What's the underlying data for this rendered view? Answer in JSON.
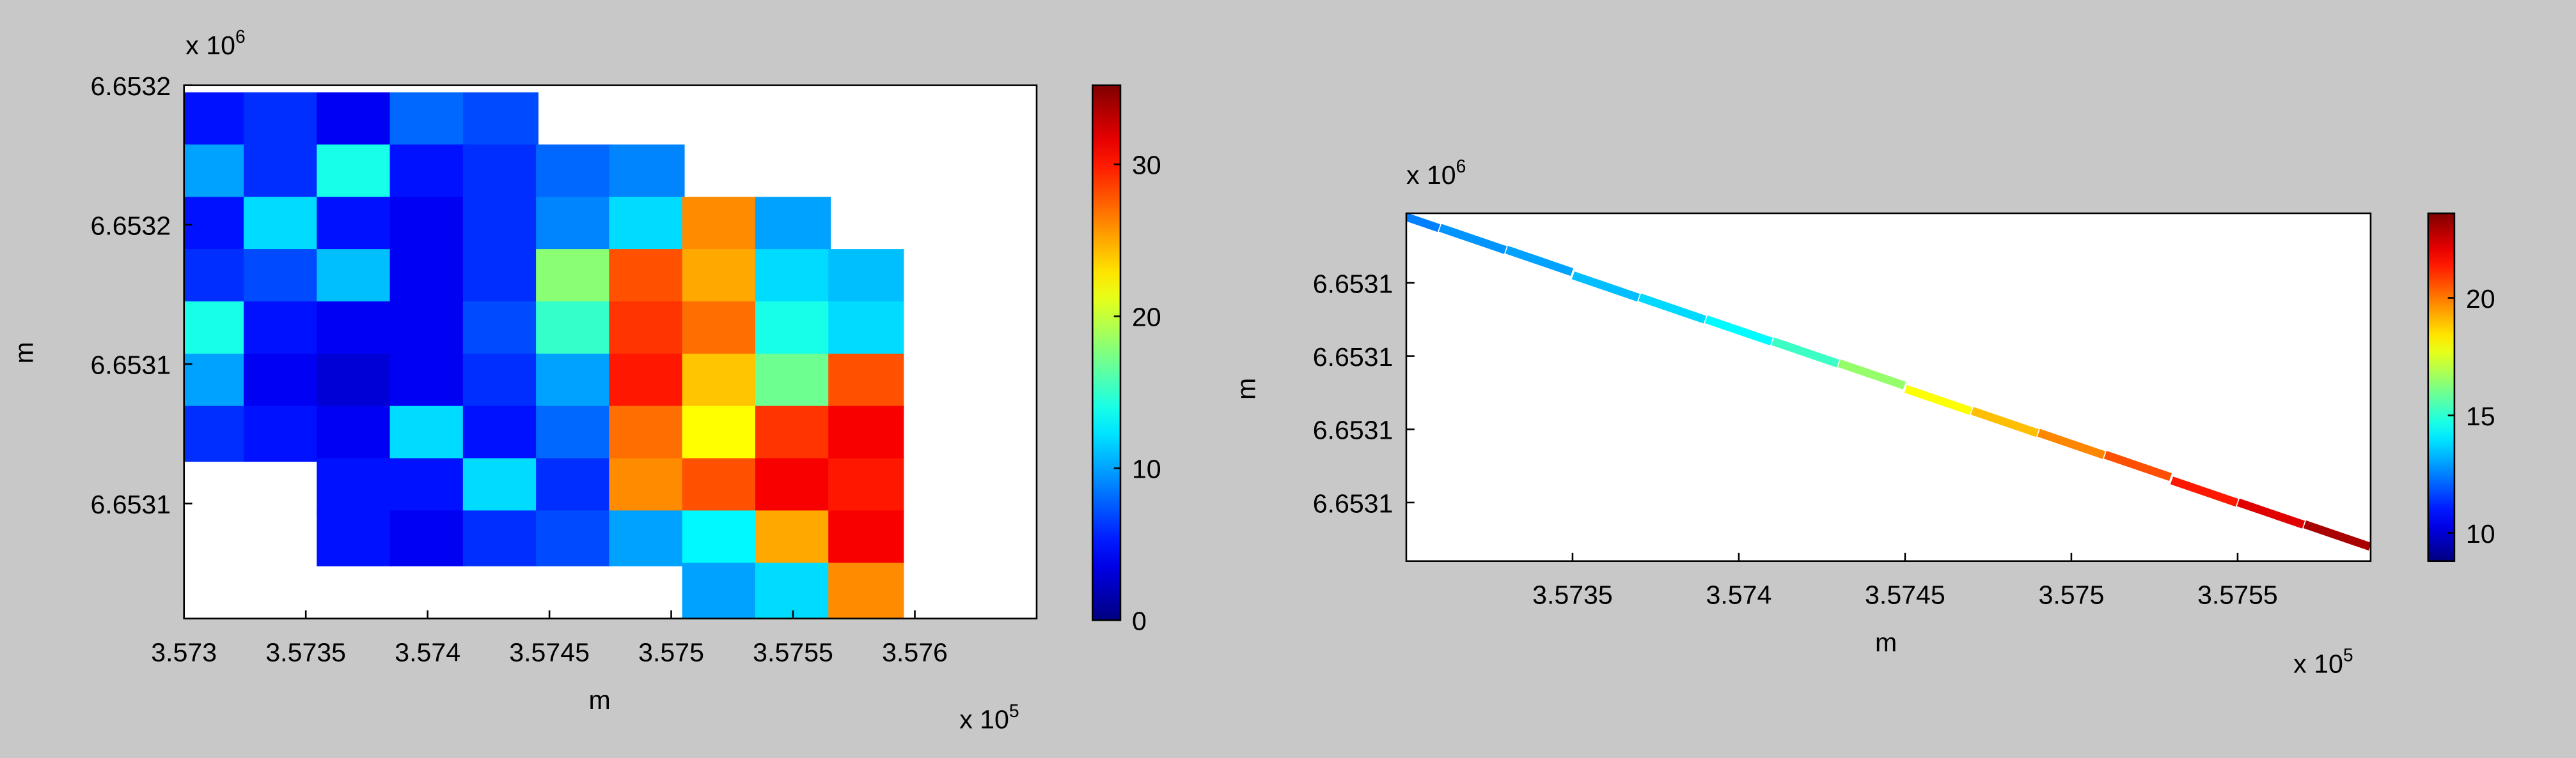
{
  "chart_data": [
    {
      "type": "scatter",
      "colormap": "jet",
      "x_label": "m",
      "y_label": "m",
      "x_offset_text": "x 10",
      "x_offset_exponent": "5",
      "y_offset_text": "x 10",
      "y_offset_exponent": "6",
      "xlim": [
        3.573,
        3.5765
      ],
      "ylim": [
        6.653067,
        6.65322
      ],
      "xticks": [
        3.573,
        3.5735,
        3.574,
        3.5745,
        3.575,
        3.5755,
        3.576
      ],
      "yticks": [
        {
          "value": 6.65322,
          "label": "6.6532"
        },
        {
          "value": 6.65318,
          "label": "6.6532"
        },
        {
          "value": 6.65314,
          "label": "6.6531"
        },
        {
          "value": 6.6531,
          "label": "6.6531"
        }
      ],
      "clim": [
        0,
        35.2
      ],
      "cticks": [
        0,
        10,
        20,
        30
      ],
      "x": [
        3.5731,
        3.5734,
        3.5737,
        3.574,
        3.5743,
        3.5731,
        3.5734,
        3.5737,
        3.574,
        3.5743,
        3.5746,
        3.5749,
        3.5731,
        3.5734,
        3.5737,
        3.574,
        3.5743,
        3.5746,
        3.5749,
        3.5752,
        3.5755,
        3.5731,
        3.5734,
        3.5737,
        3.574,
        3.5743,
        3.5746,
        3.5749,
        3.5752,
        3.5755,
        3.5758,
        3.5731,
        3.5734,
        3.5737,
        3.574,
        3.5743,
        3.5746,
        3.5749,
        3.5752,
        3.5755,
        3.5758,
        3.5731,
        3.5734,
        3.5737,
        3.574,
        3.5743,
        3.5746,
        3.5749,
        3.5752,
        3.5755,
        3.5758,
        3.5731,
        3.5734,
        3.5737,
        3.574,
        3.5743,
        3.5746,
        3.5749,
        3.5752,
        3.5755,
        3.5758,
        3.5737,
        3.574,
        3.5743,
        3.5746,
        3.5749,
        3.5752,
        3.5755,
        3.5758,
        3.5737,
        3.574,
        3.5743,
        3.5746,
        3.5749,
        3.5752,
        3.5755,
        3.5758,
        3.5752,
        3.5755,
        3.5758
      ],
      "y": [
        6.65321,
        6.65321,
        6.65321,
        6.65321,
        6.65321,
        6.653195,
        6.653195,
        6.653195,
        6.653195,
        6.653195,
        6.653195,
        6.653195,
        6.65318,
        6.65318,
        6.65318,
        6.65318,
        6.65318,
        6.65318,
        6.65318,
        6.65318,
        6.65318,
        6.653165,
        6.653165,
        6.653165,
        6.653165,
        6.653165,
        6.653165,
        6.653165,
        6.653165,
        6.653165,
        6.653165,
        6.65315,
        6.65315,
        6.65315,
        6.65315,
        6.65315,
        6.65315,
        6.65315,
        6.65315,
        6.65315,
        6.65315,
        6.653135,
        6.653135,
        6.653135,
        6.653135,
        6.653135,
        6.653135,
        6.653135,
        6.653135,
        6.653135,
        6.653135,
        6.65312,
        6.65312,
        6.65312,
        6.65312,
        6.65312,
        6.65312,
        6.65312,
        6.65312,
        6.65312,
        6.65312,
        6.653105,
        6.653105,
        6.653105,
        6.653105,
        6.653105,
        6.653105,
        6.653105,
        6.653105,
        6.65309,
        6.65309,
        6.65309,
        6.65309,
        6.65309,
        6.65309,
        6.65309,
        6.65309,
        6.653075,
        6.653075,
        6.653075
      ],
      "c": [
        5,
        6,
        4,
        8,
        7,
        10,
        6,
        14,
        5,
        6,
        8,
        9,
        5,
        12,
        5,
        4,
        6,
        9,
        12,
        26,
        10,
        6,
        7,
        11,
        4,
        6,
        18,
        28,
        25,
        12,
        11,
        14,
        5,
        4,
        4,
        7,
        15,
        29,
        27,
        14,
        12,
        10,
        4,
        3,
        4,
        6,
        10,
        30,
        24,
        17,
        28,
        6,
        5,
        4,
        12,
        5,
        8,
        27,
        22,
        29,
        31,
        5,
        5,
        12,
        6,
        26,
        28,
        31,
        30,
        5,
        4,
        6,
        7,
        10,
        13,
        25,
        31,
        10,
        12,
        26
      ]
    },
    {
      "type": "scatter",
      "colormap": "jet",
      "x_label": "m",
      "y_label": "m",
      "x_offset_text": "x 10",
      "x_offset_exponent": "5",
      "y_offset_text": "x 10",
      "y_offset_exponent": "6",
      "xlim": [
        3.573,
        3.5759
      ],
      "ylim": [
        6.653064,
        6.653159
      ],
      "xticks": [
        3.5735,
        3.574,
        3.5745,
        3.575,
        3.5755
      ],
      "yticks": [
        {
          "value": 6.65314,
          "label": "6.6531"
        },
        {
          "value": 6.65312,
          "label": "6.6531"
        },
        {
          "value": 6.6531,
          "label": "6.6531"
        },
        {
          "value": 6.65308,
          "label": "6.6531"
        }
      ],
      "clim": [
        8.8,
        23.6
      ],
      "cticks": [
        10,
        15,
        20
      ],
      "x": [
        3.573,
        3.5732,
        3.5734,
        3.5736,
        3.5738,
        3.574,
        3.5742,
        3.5744,
        3.5746,
        3.5748,
        3.575,
        3.5752,
        3.5754,
        3.5756,
        3.5758
      ],
      "y": [
        6.653158,
        6.653152,
        6.653146,
        6.653139,
        6.653133,
        6.653127,
        6.653121,
        6.653115,
        6.653108,
        6.653102,
        6.653096,
        6.65309,
        6.653083,
        6.653077,
        6.653071
      ],
      "c": [
        12.5,
        12.8,
        13,
        13.4,
        13.8,
        14.3,
        15.2,
        16.5,
        18,
        19,
        19.8,
        20.6,
        21.4,
        22.2,
        23
      ]
    }
  ]
}
